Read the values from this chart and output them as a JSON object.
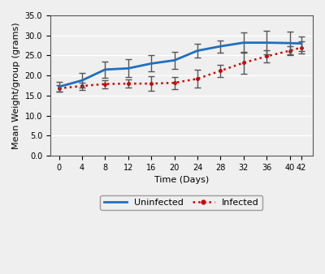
{
  "x": [
    0,
    4,
    8,
    12,
    16,
    20,
    24,
    28,
    32,
    36,
    40,
    42
  ],
  "uninfected_y": [
    17.2,
    18.8,
    21.5,
    21.8,
    23.0,
    23.8,
    26.2,
    27.3,
    28.2,
    28.2,
    28.1,
    28.0
  ],
  "uninfected_err": [
    1.2,
    1.8,
    2.0,
    2.2,
    2.0,
    2.2,
    1.8,
    1.5,
    2.5,
    3.0,
    2.8,
    1.8
  ],
  "infected_y": [
    16.8,
    17.4,
    17.9,
    18.0,
    18.0,
    18.2,
    19.2,
    21.2,
    23.2,
    24.8,
    26.2,
    27.0
  ],
  "infected_err": [
    0.8,
    0.9,
    1.0,
    1.0,
    1.8,
    1.5,
    2.2,
    1.5,
    2.8,
    1.5,
    1.2,
    1.5
  ],
  "xlabel": "Time (Days)",
  "ylabel": "Mean Weight/group (grams)",
  "ylim": [
    0.0,
    35.0
  ],
  "yticks": [
    0.0,
    5.0,
    10.0,
    15.0,
    20.0,
    25.0,
    30.0,
    35.0
  ],
  "xticks": [
    0,
    4,
    8,
    12,
    16,
    20,
    24,
    28,
    32,
    36,
    40,
    42
  ],
  "uninfected_color": "#1F6FBF",
  "infected_color": "#CC0000",
  "background_color": "#EFEFEF",
  "error_color": "#555555",
  "legend_labels": [
    "Uninfected",
    "Infected"
  ]
}
